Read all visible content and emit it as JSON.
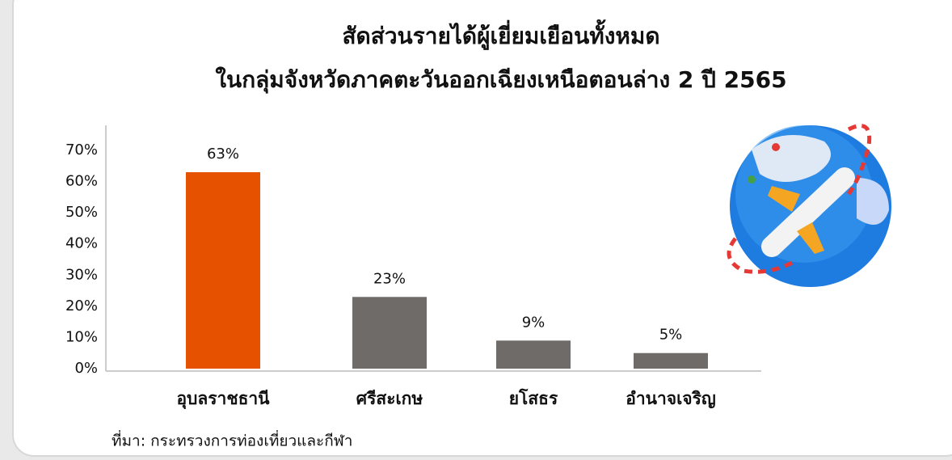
{
  "chart_data": {
    "type": "bar",
    "title": "สัดส่วนรายได้ผู้เยี่ยมเยือนทั้งหมด",
    "subtitle": "ในกลุ่มจังหวัดภาคตะวันออกเฉียงเหนือตอนล่าง 2 ปี 2565",
    "categories": [
      "อุบลราชธานี",
      "ศรีสะเกษ",
      "ยโสธร",
      "อำนาจเจริญ"
    ],
    "values": [
      63,
      23,
      9,
      5
    ],
    "value_labels": [
      "63%",
      "23%",
      "9%",
      "5%"
    ],
    "colors": [
      "#e65100",
      "#6f6b69",
      "#6f6b69",
      "#6f6b69"
    ],
    "ylim": [
      0,
      70
    ],
    "yticks": [
      {
        "value": 0,
        "label": "0%"
      },
      {
        "value": 10,
        "label": "10%"
      },
      {
        "value": 20,
        "label": "20%"
      },
      {
        "value": 30,
        "label": "30%"
      },
      {
        "value": 40,
        "label": "40%"
      },
      {
        "value": 50,
        "label": "50%"
      },
      {
        "value": 60,
        "label": "60%"
      },
      {
        "value": 70,
        "label": "70%"
      }
    ],
    "grid": false,
    "source": "ที่มา: กระทรวงการท่องเที่ยวและกีฬา"
  }
}
